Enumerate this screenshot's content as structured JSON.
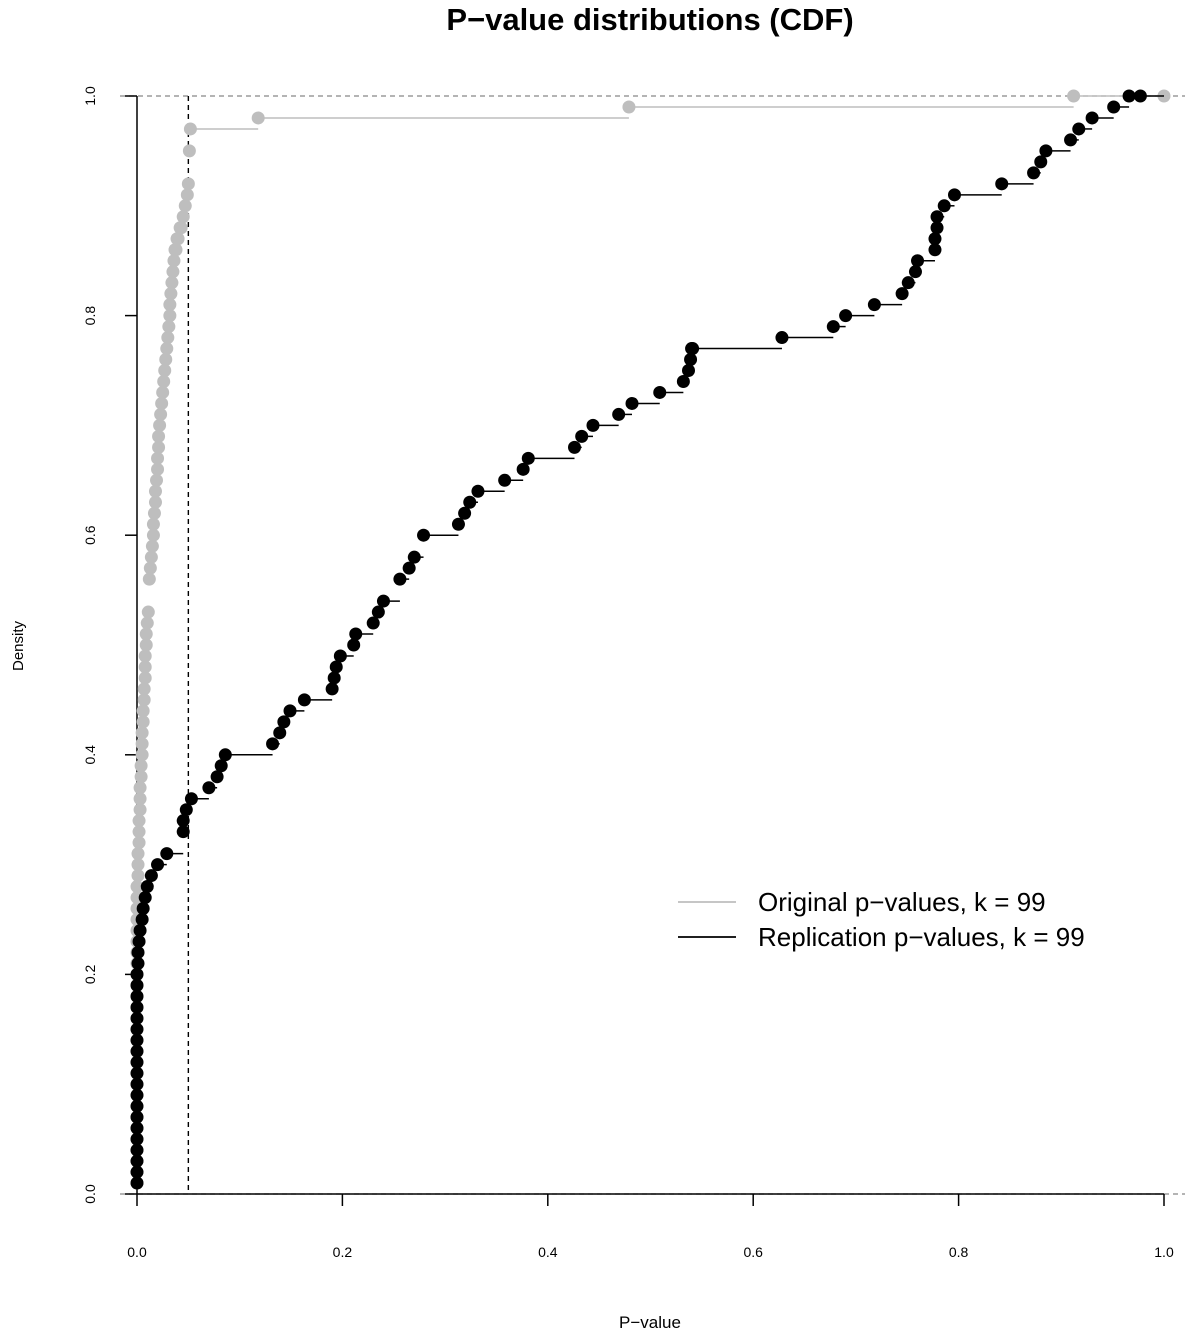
{
  "chart_data": {
    "type": "line",
    "title": "P−value distributions (CDF)",
    "xlabel": "P−value",
    "ylabel": "Density",
    "xlim": [
      0,
      1
    ],
    "ylim": [
      0,
      1
    ],
    "x_ticks": [
      {
        "value": 0.0,
        "label": "0.0"
      },
      {
        "value": 0.2,
        "label": "0.2"
      },
      {
        "value": 0.4,
        "label": "0.4"
      },
      {
        "value": 0.6,
        "label": "0.6"
      },
      {
        "value": 0.8,
        "label": "0.8"
      },
      {
        "value": 1.0,
        "label": "1.0"
      }
    ],
    "y_ticks": [
      {
        "value": 0.0,
        "label": "0.0"
      },
      {
        "value": 0.2,
        "label": "0.2"
      },
      {
        "value": 0.4,
        "label": "0.4"
      },
      {
        "value": 0.6,
        "label": "0.6"
      },
      {
        "value": 0.8,
        "label": "0.8"
      },
      {
        "value": 1.0,
        "label": "1.0"
      }
    ],
    "reference_lines": {
      "vertical_x": 0.05,
      "horizontal_y": [
        0,
        1
      ]
    },
    "legend_position": "right",
    "series": [
      {
        "name": "Original p−values, k =  99",
        "color": "#bebebe",
        "x": [
          0.0,
          0.0,
          0.0,
          0.0,
          0.0,
          0.0,
          0.0,
          0.0,
          0.0,
          0.0,
          0.0,
          0.0,
          0.0,
          0.0,
          0.0,
          0.0,
          0.0,
          0.0,
          0.0,
          0.0,
          0.0,
          0.0,
          0.0,
          0.0,
          0.0,
          0.0,
          0.0,
          0.0,
          0.001,
          0.001,
          0.001,
          0.002,
          0.002,
          0.002,
          0.003,
          0.003,
          0.003,
          0.004,
          0.004,
          0.005,
          0.005,
          0.005,
          0.006,
          0.006,
          0.007,
          0.007,
          0.008,
          0.008,
          0.008,
          0.009,
          0.009,
          0.01,
          0.011,
          0.012,
          0.013,
          0.014,
          0.015,
          0.016,
          0.016,
          0.017,
          0.018,
          0.018,
          0.019,
          0.02,
          0.02,
          0.021,
          0.021,
          0.022,
          0.023,
          0.024,
          0.025,
          0.026,
          0.027,
          0.028,
          0.029,
          0.03,
          0.031,
          0.032,
          0.032,
          0.033,
          0.034,
          0.035,
          0.036,
          0.037,
          0.038,
          0.039,
          0.04,
          0.042,
          0.043,
          0.045,
          0.047,
          0.049,
          0.05,
          0.051,
          0.052,
          0.118,
          0.479,
          0.912,
          1.0
        ],
        "y": [
          0.01,
          0.02,
          0.03,
          0.04,
          0.05,
          0.06,
          0.07,
          0.08,
          0.09,
          0.1,
          0.11,
          0.12,
          0.13,
          0.14,
          0.15,
          0.16,
          0.17,
          0.18,
          0.19,
          0.2,
          0.21,
          0.22,
          0.23,
          0.24,
          0.25,
          0.26,
          0.27,
          0.28,
          0.29,
          0.3,
          0.31,
          0.32,
          0.33,
          0.34,
          0.35,
          0.36,
          0.37,
          0.38,
          0.39,
          0.4,
          0.41,
          0.42,
          0.43,
          0.44,
          0.45,
          0.46,
          0.47,
          0.48,
          0.49,
          0.5,
          0.51,
          0.52,
          0.53,
          0.56,
          0.57,
          0.58,
          0.59,
          0.6,
          0.61,
          0.62,
          0.63,
          0.64,
          0.65,
          0.66,
          0.67,
          0.68,
          0.69,
          0.7,
          0.71,
          0.72,
          0.73,
          0.74,
          0.75,
          0.76,
          0.77,
          0.78,
          0.79,
          0.8,
          0.81,
          0.82,
          0.83,
          0.84,
          0.85,
          0.86,
          0.86,
          0.87,
          0.87,
          0.88,
          0.88,
          0.89,
          0.9,
          0.91,
          0.92,
          0.95,
          0.97,
          0.98,
          0.99,
          1.0,
          1.0
        ]
      },
      {
        "name": "Replication p−values, k =  99",
        "color": "#000000",
        "x": [
          0.0,
          0.0,
          0.0,
          0.0,
          0.0,
          0.0,
          0.0,
          0.0,
          0.0,
          0.0,
          0.0,
          0.0,
          0.0,
          0.0,
          0.0,
          0.0,
          0.0,
          0.0,
          0.0,
          0.0,
          0.001,
          0.001,
          0.002,
          0.003,
          0.005,
          0.006,
          0.008,
          0.01,
          0.014,
          0.02,
          0.029,
          0.045,
          0.045,
          0.048,
          0.053,
          0.07,
          0.078,
          0.082,
          0.086,
          0.132,
          0.139,
          0.143,
          0.149,
          0.163,
          0.19,
          0.192,
          0.194,
          0.198,
          0.211,
          0.213,
          0.23,
          0.235,
          0.24,
          0.256,
          0.265,
          0.27,
          0.279,
          0.313,
          0.319,
          0.324,
          0.332,
          0.358,
          0.376,
          0.381,
          0.426,
          0.433,
          0.444,
          0.469,
          0.482,
          0.509,
          0.532,
          0.537,
          0.539,
          0.54,
          0.541,
          0.628,
          0.678,
          0.69,
          0.718,
          0.745,
          0.751,
          0.758,
          0.76,
          0.777,
          0.777,
          0.779,
          0.779,
          0.786,
          0.796,
          0.842,
          0.873,
          0.88,
          0.885,
          0.909,
          0.917,
          0.93,
          0.951,
          0.966,
          0.977
        ],
        "y": [
          0.01,
          0.02,
          0.03,
          0.04,
          0.05,
          0.06,
          0.07,
          0.08,
          0.09,
          0.1,
          0.11,
          0.12,
          0.13,
          0.14,
          0.15,
          0.16,
          0.17,
          0.18,
          0.19,
          0.2,
          0.21,
          0.22,
          0.23,
          0.24,
          0.25,
          0.26,
          0.27,
          0.28,
          0.29,
          0.3,
          0.31,
          0.33,
          0.34,
          0.35,
          0.36,
          0.37,
          0.38,
          0.39,
          0.4,
          0.41,
          0.42,
          0.43,
          0.44,
          0.45,
          0.46,
          0.47,
          0.48,
          0.49,
          0.5,
          0.51,
          0.52,
          0.53,
          0.54,
          0.56,
          0.57,
          0.58,
          0.6,
          0.61,
          0.62,
          0.63,
          0.64,
          0.65,
          0.66,
          0.67,
          0.68,
          0.69,
          0.7,
          0.71,
          0.72,
          0.73,
          0.74,
          0.75,
          0.76,
          0.77,
          0.77,
          0.78,
          0.79,
          0.8,
          0.81,
          0.82,
          0.83,
          0.84,
          0.85,
          0.86,
          0.87,
          0.88,
          0.89,
          0.9,
          0.91,
          0.92,
          0.93,
          0.94,
          0.95,
          0.96,
          0.97,
          0.98,
          0.99,
          1.0,
          1.0
        ]
      }
    ]
  }
}
